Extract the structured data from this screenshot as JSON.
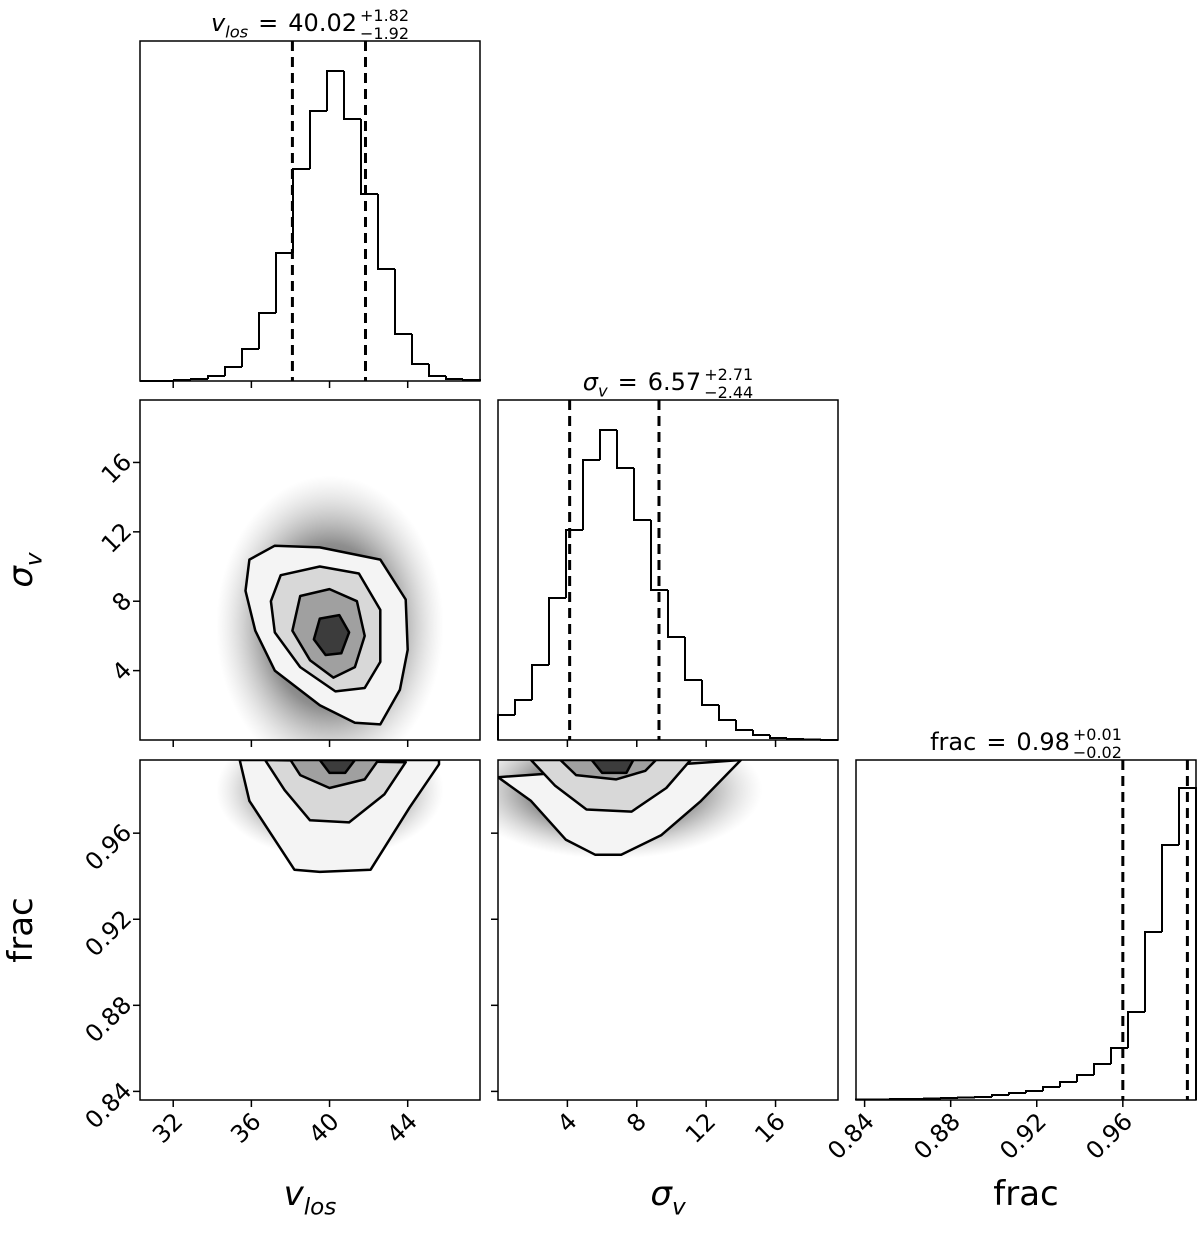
{
  "chart_data": {
    "type": "corner",
    "sign": "=",
    "color": "#000000",
    "hist_ylim": [
      0,
      340
    ],
    "parameters": [
      {
        "symbol": "v",
        "subscript": "los",
        "italic": true,
        "lim": [
          30.3,
          47.7
        ],
        "ticks": [
          32,
          36,
          40,
          44
        ],
        "bins": [
          30.3,
          31.17,
          32.04,
          32.91,
          33.78,
          34.65,
          35.52,
          36.39,
          37.26,
          38.13,
          39.0,
          39.87,
          40.74,
          41.61,
          42.48,
          43.35,
          44.22,
          45.09,
          45.96,
          46.83,
          47.7
        ],
        "counts": [
          0,
          0,
          1,
          2,
          5,
          14,
          32,
          68,
          128,
          212,
          270,
          310,
          262,
          187,
          112,
          47,
          17,
          5,
          2,
          1
        ],
        "quantiles": [
          38.1,
          41.84
        ],
        "median": 40.02,
        "upper": {
          "value": 1.82,
          "label": "+1.82"
        },
        "lower": {
          "value": -1.92,
          "label": "−1.92"
        }
      },
      {
        "symbol": "σ",
        "subscript": "v",
        "italic": true,
        "lim": [
          0,
          19.6
        ],
        "ticks": [
          4,
          8,
          12,
          16
        ],
        "bins": [
          0,
          0.98,
          1.96,
          2.94,
          3.92,
          4.9,
          5.88,
          6.86,
          7.84,
          8.82,
          9.8,
          10.78,
          11.76,
          12.74,
          13.72,
          14.7,
          15.68,
          16.66,
          17.64,
          18.62,
          19.6
        ],
        "counts": [
          25,
          40,
          75,
          142,
          210,
          280,
          310,
          272,
          220,
          150,
          103,
          60,
          35,
          20,
          10,
          5,
          2,
          1,
          0.5,
          0
        ],
        "quantiles": [
          4.13,
          9.28
        ],
        "median": 6.57,
        "upper": {
          "value": 2.71,
          "label": "+2.71"
        },
        "lower": {
          "value": -2.44,
          "label": "−2.44"
        }
      },
      {
        "symbol": "frac",
        "italic": false,
        "lim": [
          0.836,
          0.994
        ],
        "ticks": [
          0.84,
          0.88,
          0.92,
          0.96
        ],
        "bins": [
          0.836,
          0.8439,
          0.8518,
          0.8597,
          0.8676,
          0.8755,
          0.8834,
          0.8913,
          0.8992,
          0.9071,
          0.915,
          0.9229,
          0.9308,
          0.9387,
          0.9466,
          0.9545,
          0.9624,
          0.9703,
          0.9782,
          0.9861,
          0.994
        ],
        "counts": [
          0.5,
          0.5,
          1,
          1,
          1.5,
          2,
          2.5,
          3,
          5,
          7,
          9,
          13,
          18,
          25,
          36,
          52,
          88,
          168,
          255,
          312
        ],
        "quantiles": [
          0.96,
          0.99
        ],
        "median": 0.98,
        "upper": {
          "value": 0.01,
          "label": "+0.01"
        },
        "lower": {
          "value": -0.02,
          "label": "−0.02"
        }
      }
    ],
    "contour_fills": [
      "#f4f4f4",
      "#d8d8d8",
      "#a0a0a0",
      "#3c3c3c"
    ],
    "pairs": [
      {
        "x": 0,
        "y": 1,
        "contours": [
          {
            "x": [
              35.9,
              37.2,
              39.5,
              42.6,
              43.9,
              44.0,
              43.6,
              42.6,
              41.3,
              39.5,
              37.2,
              36.2,
              35.7
            ],
            "y": [
              10.4,
              11.2,
              11.1,
              10.4,
              8.1,
              5.2,
              2.9,
              0.9,
              1.0,
              2.0,
              4.0,
              6.3,
              8.6
            ]
          },
          {
            "x": [
              37.5,
              39.5,
              41.5,
              42.6,
              42.6,
              41.8,
              40.3,
              38.5,
              37.2,
              37.0
            ],
            "y": [
              9.5,
              10.0,
              9.6,
              7.5,
              4.5,
              3.0,
              2.8,
              4.2,
              6.2,
              8.0
            ]
          },
          {
            "x": [
              38.5,
              40.0,
              41.4,
              41.8,
              41.3,
              40.2,
              39.0,
              38.1
            ],
            "y": [
              8.3,
              8.7,
              8.0,
              6.0,
              4.2,
              3.6,
              4.6,
              6.3
            ]
          },
          {
            "x": [
              39.5,
              40.5,
              41.0,
              40.6,
              39.8,
              39.2
            ],
            "y": [
              7.0,
              7.2,
              6.2,
              5.0,
              4.9,
              5.8
            ]
          }
        ]
      },
      {
        "x": 0,
        "y": 2,
        "contours": [
          {
            "x": [
              35.4,
              35.9,
              38.2,
              39.5,
              42.1,
              44.1,
              45.6,
              45.6
            ],
            "y": [
              0.994,
              0.975,
              0.943,
              0.942,
              0.943,
              0.972,
              0.992,
              0.994
            ]
          },
          {
            "x": [
              36.7,
              37.7,
              39.0,
              41.0,
              42.8,
              43.9
            ],
            "y": [
              0.994,
              0.98,
              0.966,
              0.965,
              0.978,
              0.993
            ]
          },
          {
            "x": [
              38.0,
              38.5,
              40.0,
              41.8,
              42.5
            ],
            "y": [
              0.994,
              0.987,
              0.981,
              0.985,
              0.994
            ]
          },
          {
            "x": [
              39.5,
              40.0,
              40.8,
              41.3
            ],
            "y": [
              0.994,
              0.988,
              0.988,
              0.994
            ]
          }
        ]
      },
      {
        "x": 1,
        "y": 2,
        "contours": [
          {
            "x": [
              0,
              1.9,
              3.9,
              5.6,
              7.1,
              9.4,
              11.7,
              13.4,
              14.0
            ],
            "y": [
              0.986,
              0.975,
              0.957,
              0.95,
              0.95,
              0.959,
              0.975,
              0.989,
              0.994
            ]
          },
          {
            "x": [
              1.9,
              3.3,
              5.1,
              7.7,
              9.7,
              11.1
            ],
            "y": [
              0.994,
              0.982,
              0.971,
              0.97,
              0.981,
              0.994
            ]
          },
          {
            "x": [
              3.6,
              4.5,
              6.8,
              8.5,
              9.1
            ],
            "y": [
              0.994,
              0.987,
              0.985,
              0.989,
              0.994
            ]
          },
          {
            "x": [
              5.4,
              6.0,
              7.4,
              7.8
            ],
            "y": [
              0.994,
              0.988,
              0.988,
              0.994
            ]
          }
        ]
      }
    ]
  }
}
